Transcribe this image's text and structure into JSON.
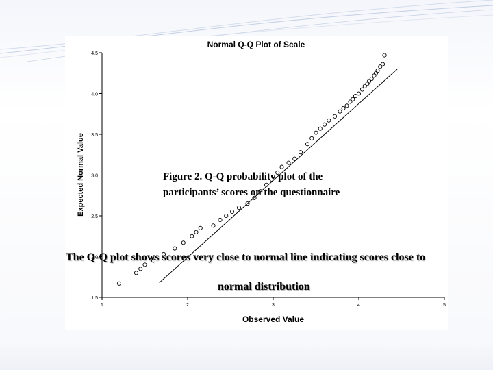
{
  "caption": {
    "line1": "Figure 2. Q-Q probability plot of the",
    "line2": "participants’ scores on the questionnaire"
  },
  "note": {
    "line1": "The Q-Q plot shows scores very close to normal line indicating scores close to",
    "line2": "normal distribution"
  },
  "colors": {
    "accent": "#9fb3d1",
    "marker": "#000000",
    "reference_line": "#000000"
  },
  "chart_data": {
    "type": "scatter",
    "title": "Normal Q-Q Plot of Scale",
    "xlabel": "Observed Value",
    "ylabel": "Expected Normal Value",
    "xlim": [
      1,
      5
    ],
    "ylim": [
      1.5,
      4.5
    ],
    "xticks": [
      1,
      2,
      3,
      4,
      5
    ],
    "yticks": [
      1.5,
      2.0,
      2.5,
      3.0,
      3.5,
      4.0,
      4.5
    ],
    "ytick_labels": [
      "1.5",
      "2.0",
      "2.5",
      "3.0",
      "3.5",
      "4.0",
      "4.5"
    ],
    "xtick_labels": [
      "1",
      "2",
      "3",
      "4",
      "5"
    ],
    "grid": false,
    "reference_line": {
      "x": [
        1.67,
        4.45
      ],
      "y": [
        1.68,
        4.3
      ]
    },
    "series": [
      {
        "x": [
          1.2,
          1.4,
          1.45,
          1.5,
          1.6,
          1.72,
          1.85,
          1.95,
          2.05,
          2.1,
          2.15,
          2.3,
          2.38,
          2.45,
          2.52,
          2.6,
          2.7,
          2.78,
          2.85,
          2.92,
          3.0,
          3.05,
          3.1,
          3.18,
          3.25,
          3.32,
          3.4,
          3.45,
          3.5,
          3.55,
          3.6,
          3.65,
          3.72,
          3.78,
          3.82,
          3.86,
          3.9,
          3.93,
          3.96,
          4.0,
          4.04,
          4.07,
          4.1,
          4.12,
          4.15,
          4.18,
          4.2,
          4.22,
          4.25,
          4.28,
          4.3
        ],
        "y": [
          1.67,
          1.8,
          1.85,
          1.9,
          1.95,
          2.03,
          2.1,
          2.17,
          2.25,
          2.3,
          2.35,
          2.38,
          2.45,
          2.5,
          2.55,
          2.6,
          2.65,
          2.72,
          2.8,
          2.88,
          2.98,
          3.03,
          3.1,
          3.15,
          3.2,
          3.28,
          3.38,
          3.45,
          3.52,
          3.57,
          3.62,
          3.67,
          3.72,
          3.78,
          3.82,
          3.85,
          3.9,
          3.93,
          3.97,
          4.0,
          4.05,
          4.09,
          4.12,
          4.15,
          4.18,
          4.22,
          4.25,
          4.28,
          4.33,
          4.36,
          4.47
        ]
      }
    ]
  }
}
